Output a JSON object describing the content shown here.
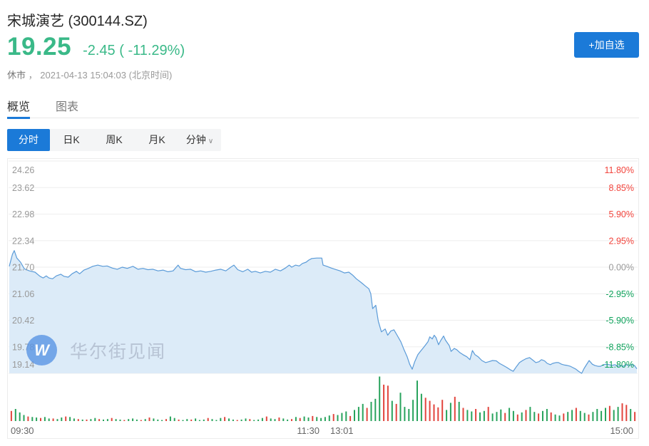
{
  "header": {
    "title": "宋城演艺 (300144.SZ)",
    "price": "19.25",
    "change": "-2.45 ( -11.29%)",
    "market_status": "休市",
    "meta_separator": "，",
    "datetime": "2021-04-13 15:04:03",
    "timezone": "(北京时间)",
    "add_watchlist_label": "+加自选"
  },
  "tabs": {
    "overview": "概览",
    "chart": "图表"
  },
  "period_tabs": {
    "minute": "分时",
    "daily": "日K",
    "weekly": "周K",
    "monthly": "月K",
    "minutes": "分钟",
    "chevron": "∨"
  },
  "watermark": {
    "icon_letter": "W",
    "text": "华尔街见闻"
  },
  "colors": {
    "accent_blue": "#1b7ad8",
    "line_blue": "#5b9bd8",
    "fill_blue": "#dcebf8",
    "up_red": "#f2443c",
    "down_green": "#0fa35c",
    "price_green": "#3ab988",
    "grid": "#eeeeee",
    "axis_gray": "#999999",
    "xlabel_gray": "#666666",
    "vol_red": "#e2453d",
    "vol_green": "#28a35c"
  },
  "chart_data": {
    "type": "line",
    "subtype": "intraday-with-volume",
    "prev_close": 21.7,
    "last_price": 19.25,
    "change_pct": -11.29,
    "ylim": [
      19.14,
      24.26
    ],
    "y_left_labels": [
      "24.26",
      "23.62",
      "22.98",
      "22.34",
      "21.70",
      "21.06",
      "20.42",
      "19.78",
      "19.14"
    ],
    "y_right_labels": [
      {
        "text": "11.80%",
        "color": "red"
      },
      {
        "text": "8.85%",
        "color": "red"
      },
      {
        "text": "5.90%",
        "color": "red"
      },
      {
        "text": "2.95%",
        "color": "red"
      },
      {
        "text": "0.00%",
        "color": "gray"
      },
      {
        "text": "-2.95%",
        "color": "green"
      },
      {
        "text": "-5.90%",
        "color": "green"
      },
      {
        "text": "-8.85%",
        "color": "green"
      },
      {
        "text": "-11.80%",
        "color": "green"
      }
    ],
    "x_labels": [
      "09:30",
      "11:30",
      "13:01",
      "15:00"
    ],
    "grid": true,
    "price_series": [
      [
        0.0,
        21.72
      ],
      [
        0.005,
        22.01
      ],
      [
        0.008,
        22.1
      ],
      [
        0.012,
        21.92
      ],
      [
        0.018,
        21.82
      ],
      [
        0.024,
        21.66
      ],
      [
        0.032,
        21.61
      ],
      [
        0.041,
        21.58
      ],
      [
        0.049,
        21.48
      ],
      [
        0.054,
        21.44
      ],
      [
        0.059,
        21.49
      ],
      [
        0.063,
        21.44
      ],
      [
        0.069,
        21.42
      ],
      [
        0.075,
        21.49
      ],
      [
        0.082,
        21.53
      ],
      [
        0.087,
        21.48
      ],
      [
        0.094,
        21.46
      ],
      [
        0.1,
        21.54
      ],
      [
        0.107,
        21.6
      ],
      [
        0.112,
        21.54
      ],
      [
        0.119,
        21.63
      ],
      [
        0.126,
        21.67
      ],
      [
        0.133,
        21.72
      ],
      [
        0.141,
        21.75
      ],
      [
        0.149,
        21.72
      ],
      [
        0.156,
        21.73
      ],
      [
        0.164,
        21.68
      ],
      [
        0.172,
        21.65
      ],
      [
        0.18,
        21.7
      ],
      [
        0.188,
        21.67
      ],
      [
        0.197,
        21.72
      ],
      [
        0.205,
        21.65
      ],
      [
        0.213,
        21.67
      ],
      [
        0.221,
        21.64
      ],
      [
        0.229,
        21.65
      ],
      [
        0.237,
        21.61
      ],
      [
        0.245,
        21.63
      ],
      [
        0.253,
        21.59
      ],
      [
        0.261,
        21.61
      ],
      [
        0.269,
        21.75
      ],
      [
        0.273,
        21.67
      ],
      [
        0.281,
        21.64
      ],
      [
        0.289,
        21.65
      ],
      [
        0.297,
        21.59
      ],
      [
        0.305,
        21.61
      ],
      [
        0.313,
        21.58
      ],
      [
        0.321,
        21.6
      ],
      [
        0.329,
        21.63
      ],
      [
        0.337,
        21.65
      ],
      [
        0.345,
        21.61
      ],
      [
        0.353,
        21.7
      ],
      [
        0.358,
        21.75
      ],
      [
        0.364,
        21.64
      ],
      [
        0.372,
        21.59
      ],
      [
        0.38,
        21.65
      ],
      [
        0.386,
        21.58
      ],
      [
        0.392,
        21.6
      ],
      [
        0.4,
        21.56
      ],
      [
        0.408,
        21.6
      ],
      [
        0.416,
        21.58
      ],
      [
        0.424,
        21.65
      ],
      [
        0.432,
        21.61
      ],
      [
        0.44,
        21.68
      ],
      [
        0.446,
        21.75
      ],
      [
        0.45,
        21.7
      ],
      [
        0.456,
        21.75
      ],
      [
        0.462,
        21.73
      ],
      [
        0.467,
        21.79
      ],
      [
        0.473,
        21.82
      ],
      [
        0.477,
        21.87
      ],
      [
        0.482,
        21.91
      ],
      [
        0.49,
        21.92
      ],
      [
        0.498,
        21.92
      ],
      [
        0.5,
        21.75
      ],
      [
        0.506,
        21.72
      ],
      [
        0.513,
        21.68
      ],
      [
        0.519,
        21.65
      ],
      [
        0.527,
        21.61
      ],
      [
        0.534,
        21.56
      ],
      [
        0.541,
        21.58
      ],
      [
        0.547,
        21.51
      ],
      [
        0.553,
        21.42
      ],
      [
        0.56,
        21.34
      ],
      [
        0.567,
        21.25
      ],
      [
        0.573,
        21.18
      ],
      [
        0.576,
        21.06
      ],
      [
        0.579,
        20.7
      ],
      [
        0.584,
        20.78
      ],
      [
        0.588,
        20.4
      ],
      [
        0.593,
        20.14
      ],
      [
        0.599,
        20.21
      ],
      [
        0.603,
        20.06
      ],
      [
        0.608,
        20.16
      ],
      [
        0.613,
        20.19
      ],
      [
        0.618,
        20.06
      ],
      [
        0.624,
        19.9
      ],
      [
        0.629,
        19.71
      ],
      [
        0.634,
        19.54
      ],
      [
        0.638,
        19.36
      ],
      [
        0.642,
        19.24
      ],
      [
        0.646,
        19.42
      ],
      [
        0.651,
        19.59
      ],
      [
        0.655,
        19.67
      ],
      [
        0.661,
        19.78
      ],
      [
        0.667,
        19.9
      ],
      [
        0.67,
        20.02
      ],
      [
        0.674,
        19.97
      ],
      [
        0.677,
        20.06
      ],
      [
        0.68,
        20.0
      ],
      [
        0.684,
        19.83
      ],
      [
        0.687,
        19.92
      ],
      [
        0.692,
        20.04
      ],
      [
        0.695,
        19.94
      ],
      [
        0.701,
        19.81
      ],
      [
        0.704,
        19.67
      ],
      [
        0.709,
        19.74
      ],
      [
        0.713,
        19.71
      ],
      [
        0.718,
        19.64
      ],
      [
        0.723,
        19.59
      ],
      [
        0.729,
        19.54
      ],
      [
        0.734,
        19.47
      ],
      [
        0.738,
        19.69
      ],
      [
        0.742,
        19.59
      ],
      [
        0.747,
        19.54
      ],
      [
        0.753,
        19.45
      ],
      [
        0.759,
        19.4
      ],
      [
        0.764,
        19.42
      ],
      [
        0.77,
        19.45
      ],
      [
        0.776,
        19.44
      ],
      [
        0.781,
        19.38
      ],
      [
        0.787,
        19.33
      ],
      [
        0.793,
        19.28
      ],
      [
        0.798,
        19.23
      ],
      [
        0.803,
        19.19
      ],
      [
        0.808,
        19.3
      ],
      [
        0.813,
        19.4
      ],
      [
        0.818,
        19.45
      ],
      [
        0.823,
        19.49
      ],
      [
        0.829,
        19.52
      ],
      [
        0.835,
        19.45
      ],
      [
        0.839,
        19.4
      ],
      [
        0.844,
        19.42
      ],
      [
        0.848,
        19.47
      ],
      [
        0.853,
        19.44
      ],
      [
        0.857,
        19.38
      ],
      [
        0.862,
        19.35
      ],
      [
        0.866,
        19.38
      ],
      [
        0.871,
        19.4
      ],
      [
        0.875,
        19.4
      ],
      [
        0.88,
        19.36
      ],
      [
        0.885,
        19.34
      ],
      [
        0.889,
        19.33
      ],
      [
        0.894,
        19.31
      ],
      [
        0.898,
        19.28
      ],
      [
        0.903,
        19.24
      ],
      [
        0.907,
        19.19
      ],
      [
        0.912,
        19.14
      ],
      [
        0.916,
        19.26
      ],
      [
        0.921,
        19.38
      ],
      [
        0.924,
        19.45
      ],
      [
        0.929,
        19.36
      ],
      [
        0.933,
        19.33
      ],
      [
        0.938,
        19.31
      ],
      [
        0.942,
        19.31
      ],
      [
        0.947,
        19.35
      ],
      [
        0.951,
        19.36
      ],
      [
        0.956,
        19.35
      ],
      [
        0.96,
        19.33
      ],
      [
        0.965,
        19.35
      ],
      [
        0.969,
        19.31
      ],
      [
        0.974,
        19.33
      ],
      [
        0.978,
        19.31
      ],
      [
        0.983,
        19.35
      ],
      [
        0.987,
        19.33
      ],
      [
        0.992,
        19.35
      ],
      [
        0.996,
        19.33
      ],
      [
        1.0,
        19.25
      ]
    ],
    "volume_bars": [
      [
        20,
        1
      ],
      [
        24,
        0
      ],
      [
        17,
        0
      ],
      [
        12,
        0
      ],
      [
        9,
        1
      ],
      [
        8,
        0
      ],
      [
        7,
        0
      ],
      [
        6,
        1
      ],
      [
        8,
        0
      ],
      [
        5,
        0
      ],
      [
        5,
        1
      ],
      [
        4,
        0
      ],
      [
        7,
        0
      ],
      [
        9,
        1
      ],
      [
        8,
        0
      ],
      [
        5,
        0
      ],
      [
        4,
        1
      ],
      [
        3,
        0
      ],
      [
        3,
        1
      ],
      [
        4,
        0
      ],
      [
        6,
        0
      ],
      [
        4,
        1
      ],
      [
        3,
        0
      ],
      [
        4,
        0
      ],
      [
        6,
        1
      ],
      [
        4,
        0
      ],
      [
        3,
        0
      ],
      [
        2,
        1
      ],
      [
        4,
        0
      ],
      [
        5,
        0
      ],
      [
        3,
        0
      ],
      [
        2,
        1
      ],
      [
        4,
        0
      ],
      [
        7,
        1
      ],
      [
        5,
        0
      ],
      [
        3,
        0
      ],
      [
        2,
        0
      ],
      [
        4,
        1
      ],
      [
        9,
        0
      ],
      [
        6,
        0
      ],
      [
        3,
        1
      ],
      [
        2,
        0
      ],
      [
        4,
        0
      ],
      [
        3,
        1
      ],
      [
        5,
        0
      ],
      [
        2,
        0
      ],
      [
        3,
        0
      ],
      [
        6,
        1
      ],
      [
        4,
        0
      ],
      [
        2,
        0
      ],
      [
        6,
        0
      ],
      [
        8,
        1
      ],
      [
        5,
        0
      ],
      [
        3,
        0
      ],
      [
        2,
        1
      ],
      [
        3,
        0
      ],
      [
        5,
        0
      ],
      [
        4,
        1
      ],
      [
        2,
        0
      ],
      [
        3,
        0
      ],
      [
        6,
        0
      ],
      [
        9,
        1
      ],
      [
        5,
        0
      ],
      [
        4,
        0
      ],
      [
        7,
        1
      ],
      [
        5,
        0
      ],
      [
        3,
        0
      ],
      [
        4,
        1
      ],
      [
        8,
        0
      ],
      [
        6,
        1
      ],
      [
        9,
        0
      ],
      [
        7,
        0
      ],
      [
        10,
        1
      ],
      [
        8,
        0
      ],
      [
        6,
        0
      ],
      [
        8,
        0
      ],
      [
        11,
        0
      ],
      [
        14,
        1
      ],
      [
        12,
        0
      ],
      [
        16,
        0
      ],
      [
        19,
        0
      ],
      [
        10,
        1
      ],
      [
        22,
        0
      ],
      [
        28,
        0
      ],
      [
        34,
        0
      ],
      [
        26,
        1
      ],
      [
        38,
        0
      ],
      [
        44,
        0
      ],
      [
        88,
        0
      ],
      [
        72,
        1
      ],
      [
        70,
        1
      ],
      [
        40,
        0
      ],
      [
        34,
        1
      ],
      [
        56,
        0
      ],
      [
        28,
        0
      ],
      [
        24,
        0
      ],
      [
        42,
        0
      ],
      [
        80,
        0
      ],
      [
        54,
        0
      ],
      [
        46,
        1
      ],
      [
        40,
        1
      ],
      [
        33,
        1
      ],
      [
        27,
        1
      ],
      [
        42,
        1
      ],
      [
        22,
        0
      ],
      [
        36,
        0
      ],
      [
        48,
        1
      ],
      [
        38,
        0
      ],
      [
        26,
        1
      ],
      [
        22,
        0
      ],
      [
        19,
        0
      ],
      [
        24,
        1
      ],
      [
        17,
        0
      ],
      [
        20,
        0
      ],
      [
        28,
        1
      ],
      [
        15,
        0
      ],
      [
        18,
        0
      ],
      [
        23,
        0
      ],
      [
        16,
        1
      ],
      [
        26,
        0
      ],
      [
        20,
        0
      ],
      [
        13,
        1
      ],
      [
        17,
        0
      ],
      [
        22,
        1
      ],
      [
        28,
        0
      ],
      [
        18,
        0
      ],
      [
        15,
        1
      ],
      [
        20,
        0
      ],
      [
        24,
        0
      ],
      [
        17,
        1
      ],
      [
        13,
        0
      ],
      [
        11,
        0
      ],
      [
        15,
        1
      ],
      [
        18,
        0
      ],
      [
        22,
        0
      ],
      [
        26,
        1
      ],
      [
        20,
        0
      ],
      [
        16,
        0
      ],
      [
        13,
        1
      ],
      [
        18,
        0
      ],
      [
        24,
        0
      ],
      [
        20,
        0
      ],
      [
        26,
        0
      ],
      [
        30,
        1
      ],
      [
        22,
        0
      ],
      [
        28,
        0
      ],
      [
        35,
        1
      ],
      [
        32,
        1
      ],
      [
        24,
        0
      ],
      [
        18,
        1
      ]
    ]
  }
}
